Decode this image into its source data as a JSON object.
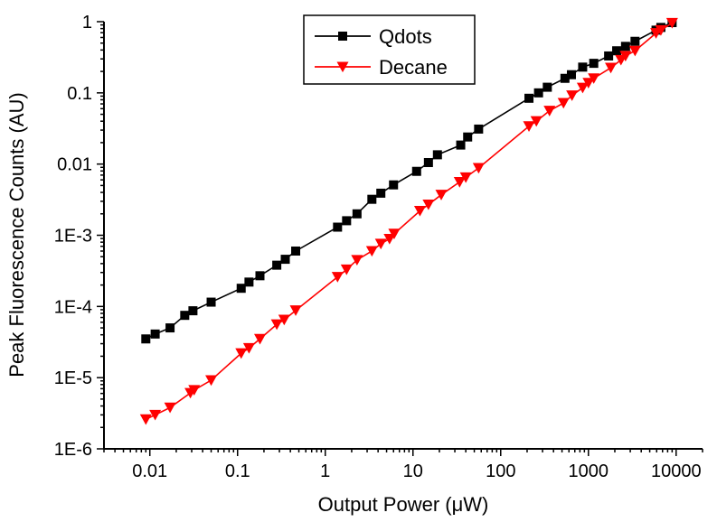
{
  "chart_data": {
    "type": "line",
    "xscale": "log",
    "yscale": "log",
    "xlabel": "Output Power (μW)",
    "ylabel": "Peak Fluorescence Counts (AU)",
    "xlim": [
      0.003,
      20000
    ],
    "ylim": [
      1e-06,
      1
    ],
    "xticks": [
      {
        "value": 0.01,
        "label": "0.01"
      },
      {
        "value": 0.1,
        "label": "0.1"
      },
      {
        "value": 1,
        "label": "1"
      },
      {
        "value": 10,
        "label": "10"
      },
      {
        "value": 100,
        "label": "100"
      },
      {
        "value": 1000,
        "label": "1000"
      },
      {
        "value": 10000,
        "label": "10000"
      }
    ],
    "yticks": [
      {
        "value": 1e-06,
        "label": "1E-6"
      },
      {
        "value": 1e-05,
        "label": "1E-5"
      },
      {
        "value": 0.0001,
        "label": "1E-4"
      },
      {
        "value": 0.001,
        "label": "1E-3"
      },
      {
        "value": 0.01,
        "label": "0.01"
      },
      {
        "value": 0.1,
        "label": "0.1"
      },
      {
        "value": 1,
        "label": "1"
      }
    ],
    "grid": false,
    "legend_position": "top-center",
    "series": [
      {
        "name": "Qdots",
        "color": "#000000",
        "marker": "square",
        "points": [
          [
            0.009,
            3.5e-05
          ],
          [
            0.0115,
            4.1e-05
          ],
          [
            0.017,
            5e-05
          ],
          [
            0.025,
            7.5e-05
          ],
          [
            0.031,
            8.7e-05
          ],
          [
            0.05,
            0.000115
          ],
          [
            0.11,
            0.00018
          ],
          [
            0.135,
            0.00022
          ],
          [
            0.18,
            0.00027
          ],
          [
            0.28,
            0.00038
          ],
          [
            0.35,
            0.00046
          ],
          [
            0.46,
            0.0006
          ],
          [
            1.38,
            0.0013
          ],
          [
            1.75,
            0.0016
          ],
          [
            2.3,
            0.002
          ],
          [
            3.4,
            0.0032
          ],
          [
            4.3,
            0.0039
          ],
          [
            6.0,
            0.0051
          ],
          [
            11.0,
            0.0079
          ],
          [
            15.0,
            0.0105
          ],
          [
            19.0,
            0.0135
          ],
          [
            35.0,
            0.0185
          ],
          [
            42.0,
            0.024
          ],
          [
            56.0,
            0.031
          ],
          [
            210,
            0.084
          ],
          [
            270,
            0.1
          ],
          [
            340,
            0.12
          ],
          [
            540,
            0.16
          ],
          [
            640,
            0.18
          ],
          [
            860,
            0.23
          ],
          [
            1150,
            0.26
          ],
          [
            1700,
            0.33
          ],
          [
            2100,
            0.39
          ],
          [
            2650,
            0.45
          ],
          [
            3400,
            0.53
          ],
          [
            5900,
            0.76
          ],
          [
            6700,
            0.83
          ],
          [
            9000,
            0.97
          ]
        ]
      },
      {
        "name": "Decane",
        "color": "#ff0000",
        "marker": "triangle-down",
        "points": [
          [
            0.009,
            2.6e-06
          ],
          [
            0.0115,
            3e-06
          ],
          [
            0.017,
            3.8e-06
          ],
          [
            0.029,
            6.1e-06
          ],
          [
            0.032,
            6.7e-06
          ],
          [
            0.05,
            9.2e-06
          ],
          [
            0.11,
            2.2e-05
          ],
          [
            0.135,
            2.6e-05
          ],
          [
            0.18,
            3.5e-05
          ],
          [
            0.28,
            5.6e-05
          ],
          [
            0.34,
            6.5e-05
          ],
          [
            0.46,
            8.8e-05
          ],
          [
            1.38,
            0.00026
          ],
          [
            1.75,
            0.00033
          ],
          [
            2.3,
            0.00045
          ],
          [
            3.4,
            0.0006
          ],
          [
            4.3,
            0.00076
          ],
          [
            5.4,
            0.00089
          ],
          [
            6.1,
            0.00105
          ],
          [
            12.0,
            0.0022
          ],
          [
            15.0,
            0.0027
          ],
          [
            21.0,
            0.0037
          ],
          [
            34.0,
            0.0056
          ],
          [
            40.0,
            0.0065
          ],
          [
            56.0,
            0.0088
          ],
          [
            210,
            0.034
          ],
          [
            255,
            0.04
          ],
          [
            360,
            0.056
          ],
          [
            520,
            0.072
          ],
          [
            650,
            0.092
          ],
          [
            860,
            0.118
          ],
          [
            1000,
            0.138
          ],
          [
            1150,
            0.16
          ],
          [
            1800,
            0.225
          ],
          [
            2350,
            0.29
          ],
          [
            2650,
            0.33
          ],
          [
            3400,
            0.39
          ],
          [
            5900,
            0.69
          ],
          [
            6700,
            0.76
          ],
          [
            9000,
            0.96
          ]
        ]
      }
    ]
  }
}
